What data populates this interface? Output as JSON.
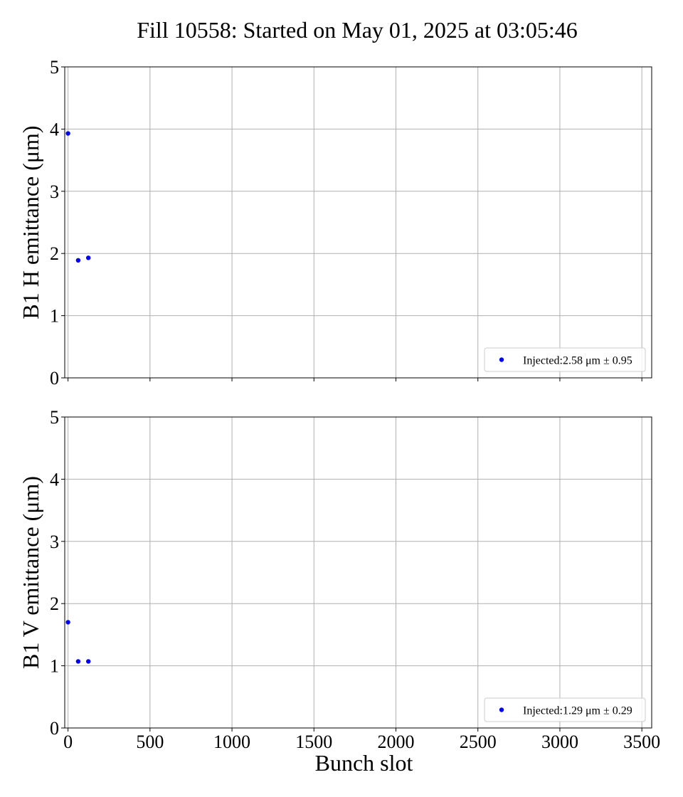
{
  "figure": {
    "title": "Fill 10558: Started on May 01, 2025 at 03:05:46"
  },
  "chart_data": [
    {
      "type": "scatter",
      "xlabel": "",
      "ylabel": "B1 H emittance (μm)",
      "xlim": [
        -20,
        3560
      ],
      "ylim": [
        0,
        5
      ],
      "xticks": [
        0,
        500,
        1000,
        1500,
        2000,
        2500,
        3000,
        3500
      ],
      "yticks": [
        0,
        1,
        2,
        3,
        4,
        5
      ],
      "show_x_tick_labels": false,
      "grid": true,
      "legend_position": "lower-right",
      "series": [
        {
          "name": "Injected:2.58 μm ± 0.95",
          "color": "#0000ff",
          "points": [
            {
              "x": 0,
              "y": 3.93
            },
            {
              "x": 62,
              "y": 1.89
            },
            {
              "x": 124,
              "y": 1.93
            }
          ]
        }
      ]
    },
    {
      "type": "scatter",
      "xlabel": "Bunch slot",
      "ylabel": "B1 V emittance (μm)",
      "xlim": [
        -20,
        3560
      ],
      "ylim": [
        0,
        5
      ],
      "xticks": [
        0,
        500,
        1000,
        1500,
        2000,
        2500,
        3000,
        3500
      ],
      "yticks": [
        0,
        1,
        2,
        3,
        4,
        5
      ],
      "show_x_tick_labels": true,
      "grid": true,
      "legend_position": "lower-right",
      "series": [
        {
          "name": "Injected:1.29 μm ± 0.29",
          "color": "#0000ff",
          "points": [
            {
              "x": 0,
              "y": 1.7
            },
            {
              "x": 62,
              "y": 1.07
            },
            {
              "x": 124,
              "y": 1.07
            }
          ]
        }
      ]
    }
  ]
}
